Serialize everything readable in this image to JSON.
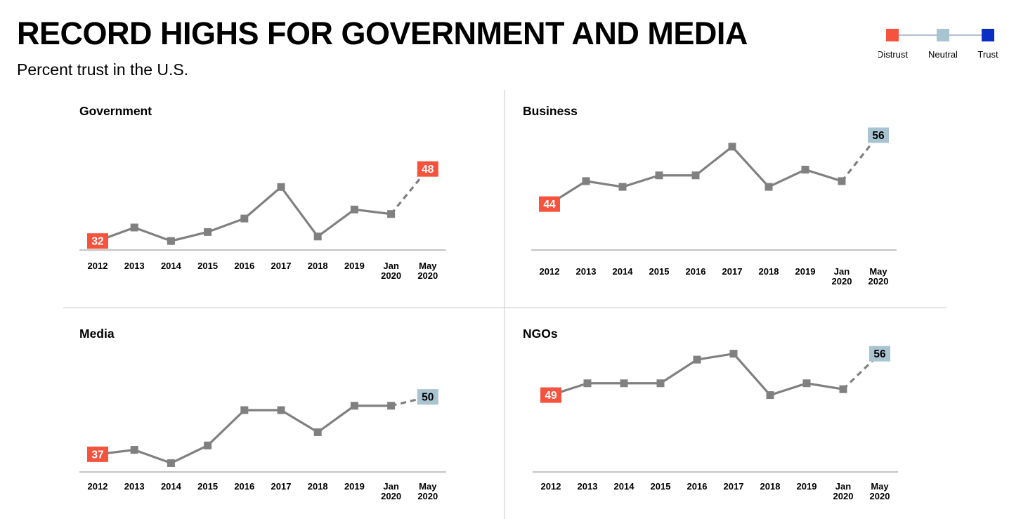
{
  "header": {
    "title": "RECORD HIGHS FOR GOVERNMENT AND MEDIA",
    "subtitle": "Percent trust in the U.S."
  },
  "legend": {
    "items": [
      {
        "label": "Distrust",
        "color": "#f5533d"
      },
      {
        "label": "Neutral",
        "color": "#a9c4d1"
      },
      {
        "label": "Trust",
        "color": "#0a2ec4"
      }
    ]
  },
  "chart_data": [
    {
      "type": "line",
      "title": "Government",
      "categories": [
        [
          "2012"
        ],
        [
          "2013"
        ],
        [
          "2014"
        ],
        [
          "2015"
        ],
        [
          "2016"
        ],
        [
          "2017"
        ],
        [
          "2018"
        ],
        [
          "2019"
        ],
        [
          "Jan",
          "2020"
        ],
        [
          "May",
          "2020"
        ]
      ],
      "values": [
        32,
        35,
        32,
        34,
        37,
        44,
        33,
        39,
        38,
        48
      ],
      "labels": [
        {
          "index": 0,
          "text": "32",
          "category": "Distrust"
        },
        {
          "index": 9,
          "text": "48",
          "category": "Distrust"
        }
      ],
      "dashed_last_segment": true,
      "ylim": [
        30,
        52
      ]
    },
    {
      "type": "line",
      "title": "Business",
      "categories": [
        [
          "2012"
        ],
        [
          "2013"
        ],
        [
          "2014"
        ],
        [
          "2015"
        ],
        [
          "2016"
        ],
        [
          "2017"
        ],
        [
          "2018"
        ],
        [
          "2019"
        ],
        [
          "Jan",
          "2020"
        ],
        [
          "May",
          "2020"
        ]
      ],
      "values": [
        44,
        48,
        47,
        49,
        49,
        54,
        47,
        50,
        48,
        56
      ],
      "labels": [
        {
          "index": 0,
          "text": "44",
          "category": "Distrust"
        },
        {
          "index": 9,
          "text": "56",
          "category": "Neutral"
        }
      ],
      "dashed_last_segment": true,
      "ylim": [
        36,
        59
      ]
    },
    {
      "type": "line",
      "title": "Media",
      "categories": [
        [
          "2012"
        ],
        [
          "2013"
        ],
        [
          "2014"
        ],
        [
          "2015"
        ],
        [
          "2016"
        ],
        [
          "2017"
        ],
        [
          "2018"
        ],
        [
          "2019"
        ],
        [
          "Jan",
          "2020"
        ],
        [
          "May",
          "2020"
        ]
      ],
      "values": [
        37,
        38,
        35,
        39,
        47,
        47,
        42,
        48,
        48,
        50
      ],
      "labels": [
        {
          "index": 0,
          "text": "37",
          "category": "Distrust"
        },
        {
          "index": 9,
          "text": "50",
          "category": "Neutral"
        }
      ],
      "dashed_last_segment": true,
      "ylim": [
        33,
        54
      ]
    },
    {
      "type": "line",
      "title": "NGOs",
      "categories": [
        [
          "2012"
        ],
        [
          "2013"
        ],
        [
          "2014"
        ],
        [
          "2015"
        ],
        [
          "2016"
        ],
        [
          "2017"
        ],
        [
          "2018"
        ],
        [
          "2019"
        ],
        [
          "Jan",
          "2020"
        ],
        [
          "May",
          "2020"
        ]
      ],
      "values": [
        49,
        51,
        51,
        51,
        55,
        56,
        49,
        51,
        50,
        56
      ],
      "labels": [
        {
          "index": 0,
          "text": "49",
          "category": "Distrust"
        },
        {
          "index": 9,
          "text": "56",
          "category": "Neutral"
        }
      ],
      "dashed_last_segment": true,
      "ylim": [
        36,
        60
      ]
    }
  ]
}
